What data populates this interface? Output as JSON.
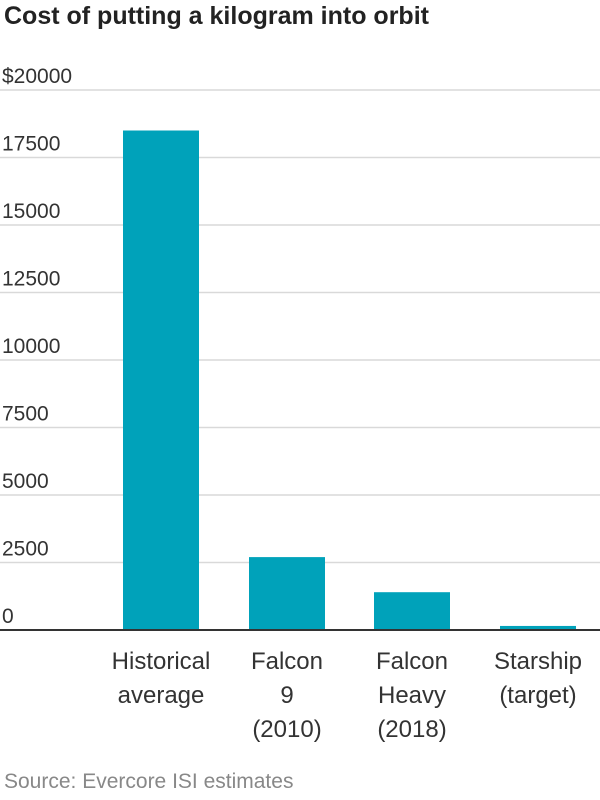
{
  "chart_data": {
    "type": "bar",
    "title": "Cost of putting a kilogram into orbit",
    "categories": [
      [
        "Historical",
        "average"
      ],
      [
        "Falcon",
        "9",
        "(2010)"
      ],
      [
        "Falcon",
        "Heavy",
        "(2018)"
      ],
      [
        "Starship",
        "(target)"
      ]
    ],
    "values": [
      18500,
      2700,
      1400,
      150
    ],
    "ylim": [
      0,
      20000
    ],
    "yticks": [
      0,
      2500,
      5000,
      7500,
      10000,
      12500,
      15000,
      17500,
      20000
    ],
    "ytick_labels": [
      "0",
      "2500",
      "5000",
      "7500",
      "10000",
      "12500",
      "15000",
      "17500",
      "$20000"
    ],
    "xlabel": "",
    "ylabel": "",
    "grid": true,
    "bar_color": "#00a2ba",
    "gridline_color": "#d9d9d9",
    "axis_color": "#333333",
    "source": "Source: Evercore ISI estimates"
  }
}
